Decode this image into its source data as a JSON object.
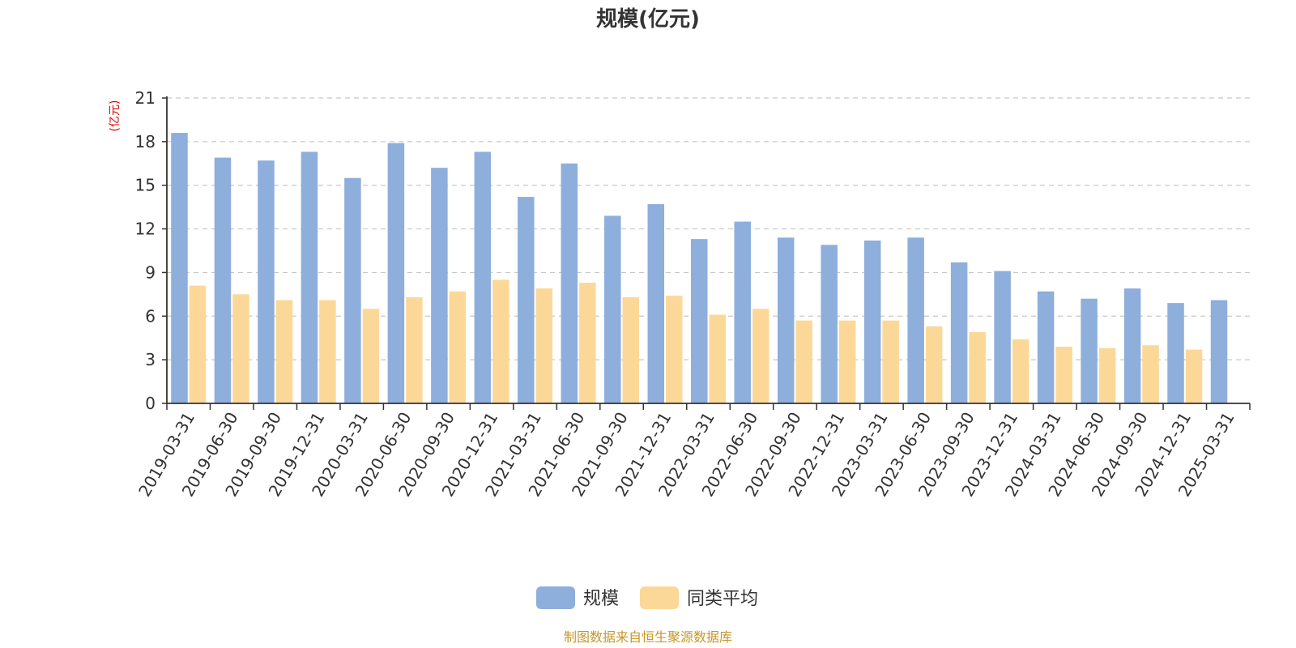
{
  "chart_data": {
    "type": "bar",
    "title": "规模(亿元)",
    "ylabel": "(亿元)",
    "ylim": [
      0,
      21
    ],
    "yticks": [
      0,
      3,
      6,
      9,
      12,
      15,
      18,
      21
    ],
    "grid": true,
    "legend_position": "bottom-center",
    "categories": [
      "2019-03-31",
      "2019-06-30",
      "2019-09-30",
      "2019-12-31",
      "2020-03-31",
      "2020-06-30",
      "2020-09-30",
      "2020-12-31",
      "2021-03-31",
      "2021-06-30",
      "2021-09-30",
      "2021-12-31",
      "2022-03-31",
      "2022-06-30",
      "2022-09-30",
      "2022-12-31",
      "2023-03-31",
      "2023-06-30",
      "2023-09-30",
      "2023-12-31",
      "2024-03-31",
      "2024-06-30",
      "2024-09-30",
      "2024-12-31",
      "2025-03-31"
    ],
    "series": [
      {
        "name": "规模",
        "color": "#8eaedb",
        "values": [
          18.6,
          16.9,
          16.7,
          17.3,
          15.5,
          17.9,
          16.2,
          17.3,
          14.2,
          16.5,
          12.9,
          13.7,
          11.3,
          12.5,
          11.4,
          10.9,
          11.2,
          11.4,
          9.7,
          9.1,
          7.7,
          7.2,
          7.9,
          6.9,
          7.1
        ]
      },
      {
        "name": "同类平均",
        "color": "#fcd898",
        "values": [
          8.1,
          7.5,
          7.1,
          7.1,
          6.5,
          7.3,
          7.7,
          8.5,
          7.9,
          8.3,
          7.3,
          7.4,
          6.1,
          6.5,
          5.7,
          5.7,
          5.7,
          5.3,
          4.9,
          4.4,
          3.9,
          3.8,
          4.0,
          3.7,
          null
        ]
      }
    ]
  },
  "source_note": "制图数据来自恒生聚源数据库"
}
